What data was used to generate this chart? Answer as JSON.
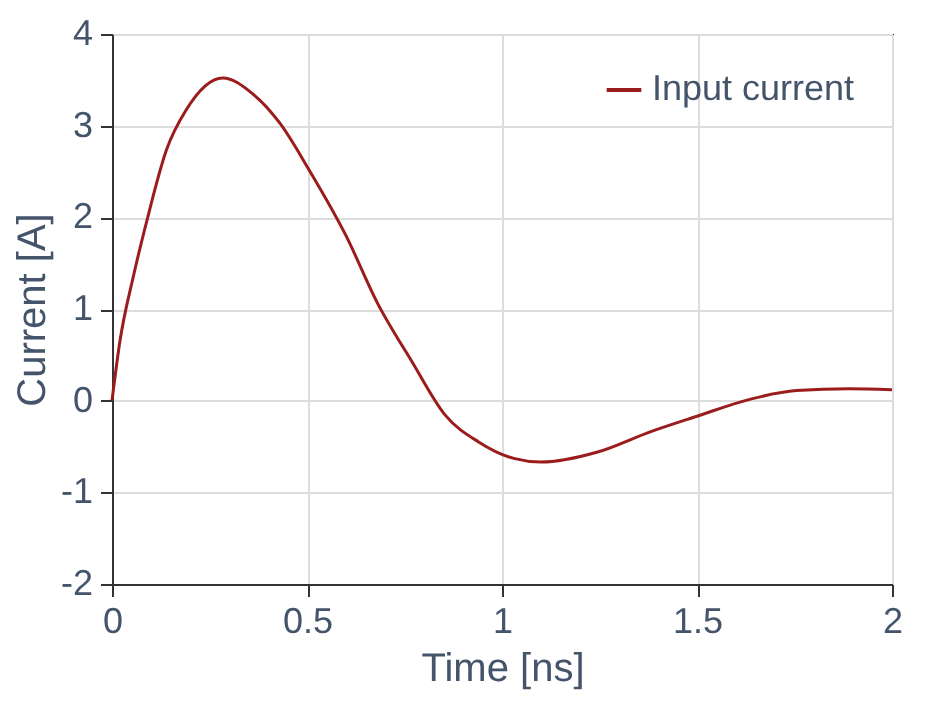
{
  "chart_data": {
    "type": "line",
    "xlabel": "Time [ns]",
    "ylabel": "Current [A]",
    "x": [
      0,
      0.02,
      0.055,
      0.088,
      0.14,
      0.19,
      0.284,
      0.36,
      0.43,
      0.505,
      0.6,
      0.68,
      0.77,
      0.855,
      0.94,
      1.03,
      1.1,
      1.245,
      1.38,
      1.5,
      1.64,
      1.755,
      1.89,
      2.0
    ],
    "series": [
      {
        "name": "Input current",
        "color": "#9b1c1c",
        "values": [
          0,
          0.64,
          1.36,
          1.94,
          2.74,
          3.17,
          3.52,
          3.35,
          3.03,
          2.52,
          1.8,
          1.07,
          0.42,
          -0.16,
          -0.45,
          -0.63,
          -0.67,
          -0.56,
          -0.34,
          -0.17,
          0.02,
          0.11,
          0.13,
          0.12
        ]
      }
    ],
    "xlim": [
      0,
      2
    ],
    "xticks": [
      0,
      0.5,
      1,
      1.5,
      2
    ],
    "ylim": [
      -2,
      4
    ],
    "yticks": [
      -2,
      -1,
      0,
      1,
      2,
      3,
      4
    ],
    "grid": true,
    "legend": "top right",
    "marker": "none",
    "line_style": "solid"
  }
}
